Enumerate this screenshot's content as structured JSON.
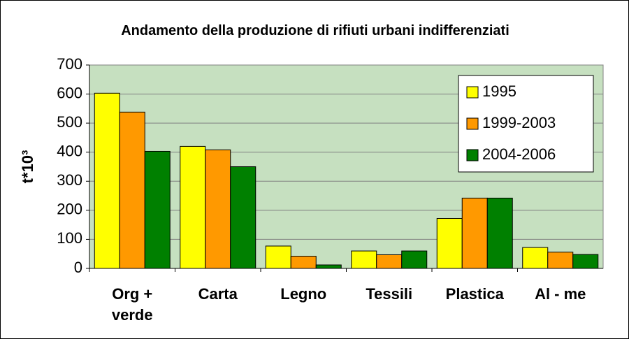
{
  "chart_data": {
    "type": "bar",
    "title": "Andamento della produzione di rifiuti urbani indifferenziati",
    "y_label": "t*10³",
    "categories": [
      "Org + verde",
      "Carta",
      "Legno",
      "Tessili",
      "Plastica",
      "Al - me"
    ],
    "series": [
      {
        "name": "1995",
        "color": "#ffff00",
        "values": [
          603,
          420,
          77,
          60,
          172,
          72
        ]
      },
      {
        "name": "1999-2003",
        "color": "#ff9900",
        "values": [
          538,
          408,
          42,
          47,
          242,
          56
        ]
      },
      {
        "name": "2004-2006",
        "color": "#008000",
        "values": [
          403,
          350,
          12,
          60,
          242,
          48
        ]
      }
    ],
    "ylim": [
      0,
      700
    ],
    "yticks": [
      0,
      100,
      200,
      300,
      400,
      500,
      600,
      700
    ],
    "grid": true,
    "legend": "upper right",
    "plot_background": "#c6e0c0"
  }
}
